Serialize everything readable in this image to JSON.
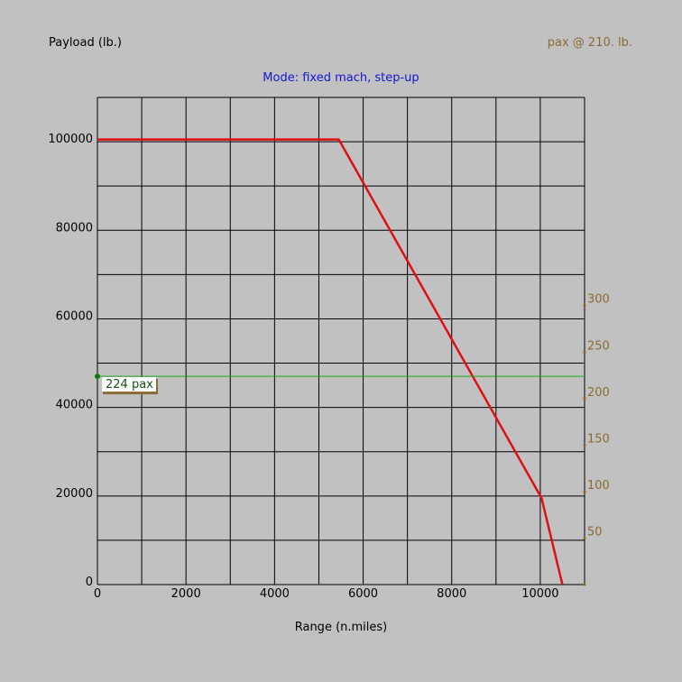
{
  "header": {
    "y_axis_title": "Payload (lb.)",
    "pax_weight_label": "pax @ 210. lb.",
    "mode_label": "Mode: fixed mach, step-up"
  },
  "colors": {
    "background": "#c1c1c1",
    "grid": "#000000",
    "payload_range_line": "#dd1111",
    "pax_line": "#22aa22",
    "pax_axis": "#8a6a32",
    "mode_text": "#1515d6"
  },
  "chart_data": {
    "type": "line",
    "title": "Mode: fixed mach, step-up",
    "xlabel": "Range (n.miles)",
    "ylabel": "Payload (lb.)",
    "xlim": [
      0,
      11000
    ],
    "ylim": [
      0,
      110000
    ],
    "x_ticks": [
      0,
      2000,
      4000,
      6000,
      8000,
      10000
    ],
    "y_ticks": [
      0,
      20000,
      40000,
      60000,
      80000,
      100000
    ],
    "grid": true,
    "series": [
      {
        "points": [
          [
            0,
            100500
          ],
          [
            5450,
            100500
          ],
          [
            10030,
            19500
          ],
          [
            10500,
            0
          ]
        ]
      }
    ],
    "pax_axis": {
      "position": "right",
      "tick_values": [
        50,
        100,
        150,
        200,
        250,
        300
      ],
      "pax_weight_lb": 210
    },
    "pax_marker": {
      "label": "224 pax",
      "pax": 224
    }
  }
}
